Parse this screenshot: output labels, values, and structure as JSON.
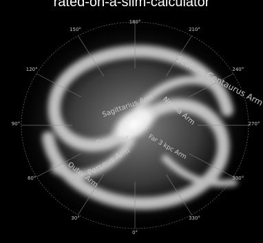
{
  "title": "rated-on-a-slim-calculator",
  "galaxy": {
    "labels": [
      {
        "key": "perseus",
        "text": "Perseus Arm"
      },
      {
        "key": "scutum_centaurus",
        "text": "Scutum-Centaurus Arm"
      },
      {
        "key": "norma",
        "text": "Norma Arm"
      },
      {
        "key": "outer",
        "text": "Outer Arm"
      },
      {
        "key": "sagittarius",
        "text": "Sagittarius Arm"
      },
      {
        "key": "orion_spur",
        "text": "Orion Spur"
      },
      {
        "key": "far_3kpc",
        "text": "Far 3 kpc Arm"
      }
    ],
    "degree_labels": [
      "0°",
      "30°",
      "60°",
      "90°",
      "120°",
      "150°",
      "180°",
      "210°",
      "240°",
      "270°",
      "300°",
      "330°"
    ],
    "colors": {
      "background": "#000000",
      "core": "#ffffff",
      "arms": "#d8d8d8",
      "grid": "#8a8a8a"
    }
  }
}
